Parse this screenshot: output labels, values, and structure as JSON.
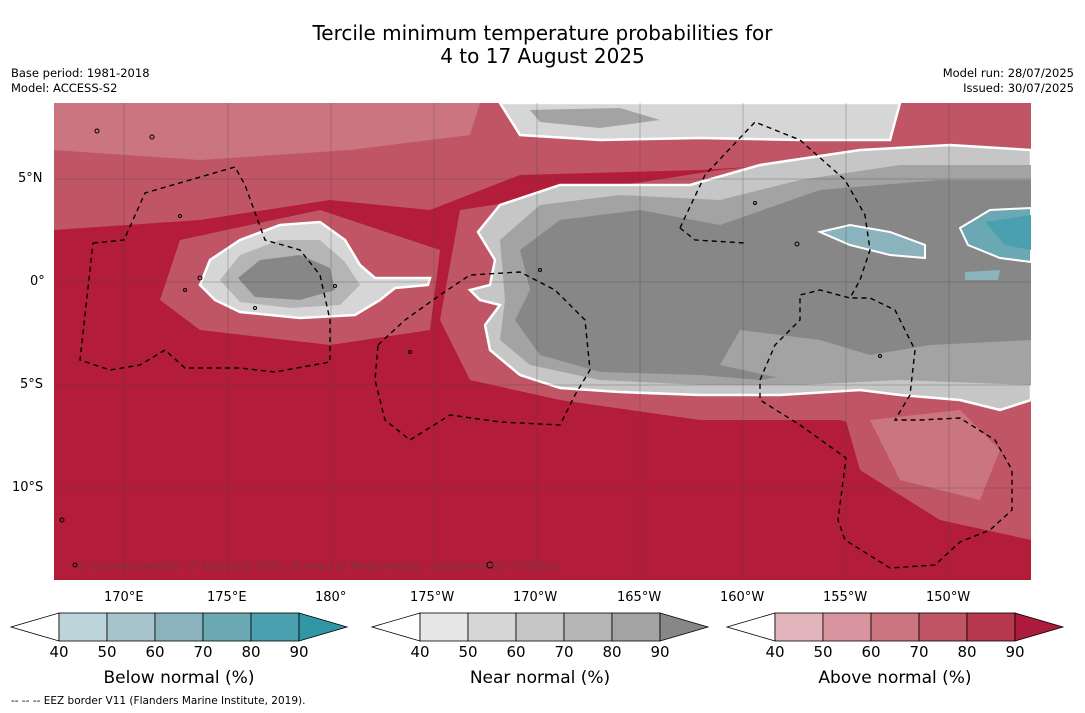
{
  "title_line1": "Tercile minimum temperature probabilities for",
  "title_line2": "4 to 17 August 2025",
  "base_period": "Base period: 1981-2018",
  "model": "Model: ACCESS-S2",
  "model_run": "Model run: 28/07/2025",
  "issued": "Issued: 30/07/2025",
  "copyright": "© Commonwealth of Australia 2025, Bureau of Meteorology, supported by COSPPac",
  "lat_labels": [
    "5°N",
    "0°",
    "5°S",
    "10°S"
  ],
  "lon_labels": [
    "170°E",
    "175°E",
    "180°",
    "175°W",
    "170°W",
    "165°W",
    "160°W",
    "155°W",
    "150°W"
  ],
  "colorbars": [
    {
      "title": "Below normal (%)",
      "ticks": [
        "40",
        "50",
        "60",
        "70",
        "80",
        "90"
      ],
      "colors": [
        "#bdd4da",
        "#a6c4cb",
        "#8ab3bd",
        "#6aa8b4",
        "#4aa0ae",
        "#3196a5"
      ]
    },
    {
      "title": "Near normal (%)",
      "ticks": [
        "40",
        "50",
        "60",
        "70",
        "80",
        "90"
      ],
      "colors": [
        "#e6e6e6",
        "#d6d6d6",
        "#c6c6c6",
        "#b5b5b5",
        "#a3a3a3",
        "#878787"
      ]
    },
    {
      "title": "Above normal (%)",
      "ticks": [
        "40",
        "50",
        "60",
        "70",
        "80",
        "90"
      ],
      "colors": [
        "#e2b5bd",
        "#d8959f",
        "#cb7581",
        "#c05565",
        "#b7374d",
        "#ad1a3c"
      ]
    }
  ],
  "footnote": "--  --  -- EEZ border V11 (Flanders Marine Institute, 2019).",
  "colors": {
    "above_dominant": "#b31d3a",
    "near_dominant": "#878787",
    "below_dominant": "#4aa0ae"
  }
}
